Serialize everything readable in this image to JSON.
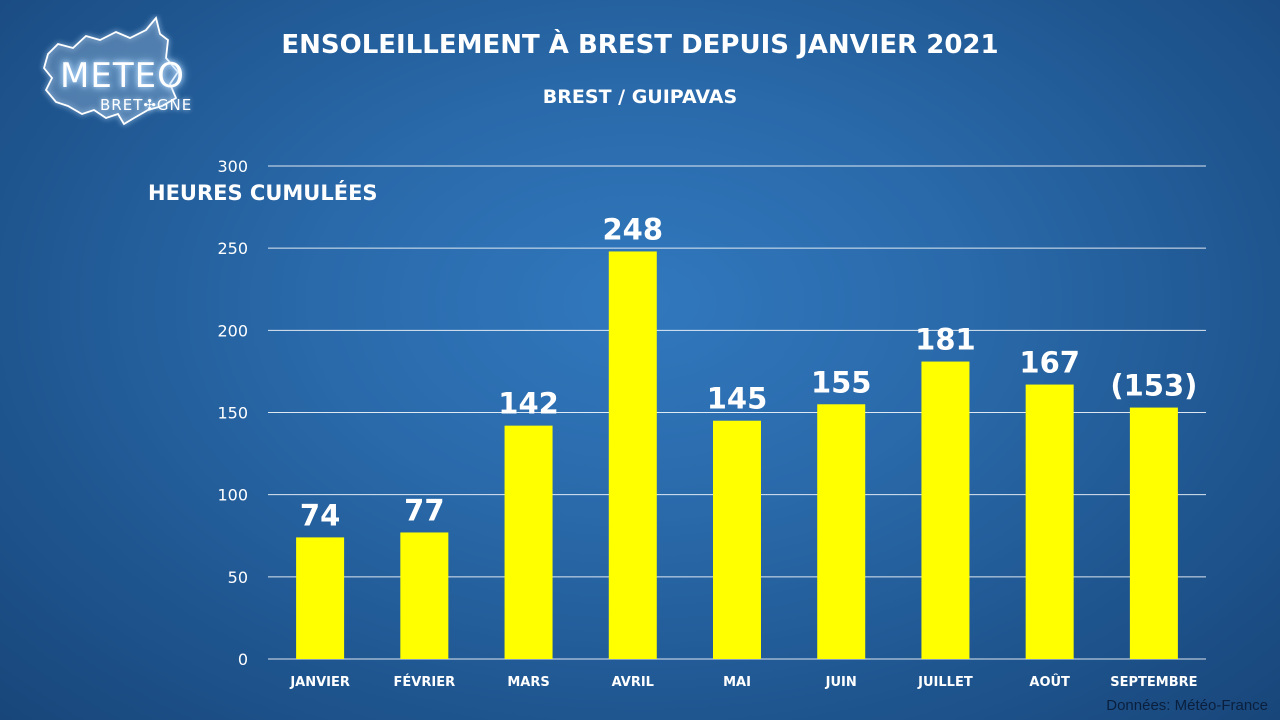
{
  "logo": {
    "main_text": "METEO",
    "sub_text": "BRET✣GNE",
    "lettering": "METEO BRETAGNE"
  },
  "chart_data": {
    "type": "bar",
    "title": "ENSOLEILLEMENT À BREST DEPUIS JANVIER 2021",
    "subtitle": "BREST / GUIPAVAS",
    "ylabel": "HEURES CUMULÉES",
    "xlabel": "",
    "categories": [
      "JANVIER",
      "FÉVRIER",
      "MARS",
      "AVRIL",
      "MAI",
      "JUIN",
      "JUILLET",
      "AOÛT",
      "SEPTEMBRE"
    ],
    "values": [
      74,
      77,
      142,
      248,
      145,
      155,
      181,
      167,
      153
    ],
    "value_labels": [
      "74",
      "77",
      "142",
      "248",
      "145",
      "155",
      "181",
      "167",
      "(153)"
    ],
    "ylim": [
      0,
      300
    ],
    "yticks": [
      0,
      50,
      100,
      150,
      200,
      250,
      300
    ],
    "grid": true,
    "legend": "none",
    "bar_color": "#ffff00",
    "gridline_color": "#ffffff"
  },
  "source": "Données: Météo-France"
}
